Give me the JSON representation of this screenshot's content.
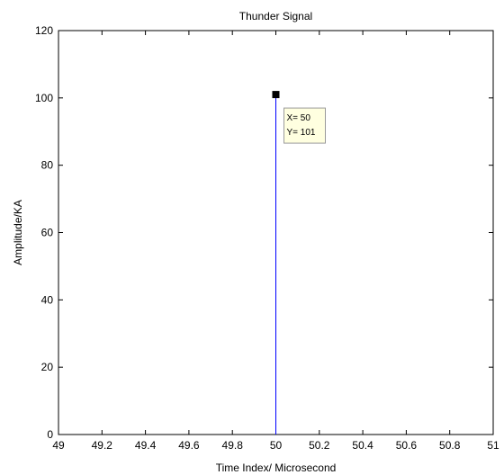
{
  "chart_data": {
    "type": "line",
    "title": "Thunder Signal",
    "xlabel": "Time Index/ Microsecond",
    "ylabel": "Amplitude/KA",
    "xlim": [
      49,
      51
    ],
    "ylim": [
      0,
      120
    ],
    "xticks": [
      "49",
      "49.2",
      "49.4",
      "49.6",
      "49.8",
      "50",
      "50.2",
      "50.4",
      "50.6",
      "50.8",
      "51"
    ],
    "yticks": [
      "0",
      "20",
      "40",
      "60",
      "80",
      "100",
      "120"
    ],
    "series": [
      {
        "x": [
          50,
          50
        ],
        "y": [
          0,
          101
        ],
        "color": "#0000ff"
      }
    ],
    "grid": false,
    "datatip": {
      "x": 50,
      "y": 101,
      "x_text": "X= 50",
      "y_text": "Y= 101"
    }
  },
  "colors": {
    "series": "#0000ff",
    "axes": "#000000",
    "background": "#ffffff",
    "tip_background": "#ffffe0",
    "tip_border": "#9a9a9a"
  }
}
